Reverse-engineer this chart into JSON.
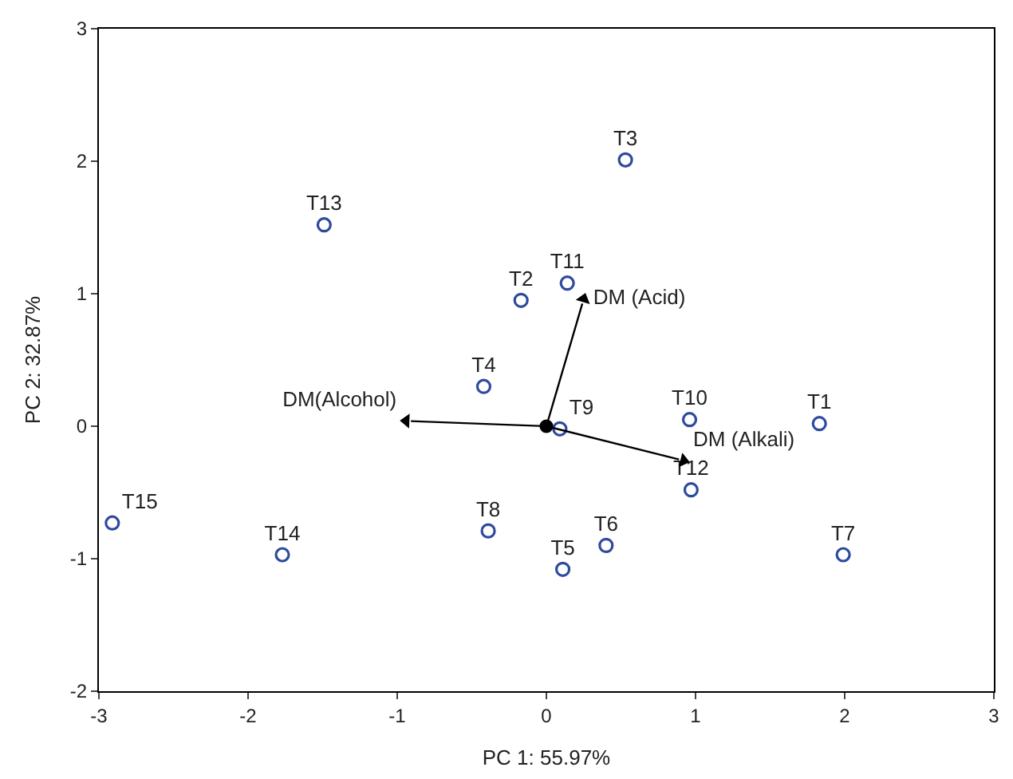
{
  "chart_data": {
    "type": "scatter",
    "xlabel": "PC 1: 55.97%",
    "ylabel": "PC 2: 32.87%",
    "xlim": [
      -3,
      3
    ],
    "xticks": [
      -3,
      -2,
      -1,
      0,
      1,
      2,
      3
    ],
    "ylim": [
      -2,
      3
    ],
    "yticks": [
      -2,
      -1,
      0,
      1,
      2,
      3
    ],
    "grid": false,
    "legend": false,
    "marker": "circle",
    "series": [
      {
        "color": "#2e4a9e",
        "x": [
          1.83,
          -0.17,
          0.53,
          -0.42,
          0.11,
          0.4,
          1.99,
          -0.39,
          0.09,
          0.96,
          0.14,
          0.97,
          -1.49,
          -1.77,
          -2.91
        ],
        "values": [
          0.02,
          0.95,
          2.01,
          0.3,
          -1.08,
          -0.9,
          -0.97,
          -0.79,
          -0.02,
          0.05,
          1.08,
          -0.48,
          1.52,
          -0.97,
          -0.73
        ],
        "value_labels": [
          "T1",
          "T2",
          "T3",
          "T4",
          "T5",
          "T6",
          "T7",
          "T8",
          "T9",
          "T10",
          "T11",
          "T12",
          "T13",
          "T14",
          "T15"
        ]
      },
      {
        "color": "#000000",
        "x": [
          0
        ],
        "values": [
          0
        ]
      },
      {
        "color": "#000000",
        "marker": "triangle",
        "x": [
          0.25,
          -0.94,
          0.92
        ],
        "values": [
          0.96,
          0.04,
          -0.26
        ],
        "value_labels": [
          "DM (Acid)",
          "DM(Alcohol)",
          "DM (Alkali)"
        ]
      }
    ]
  }
}
